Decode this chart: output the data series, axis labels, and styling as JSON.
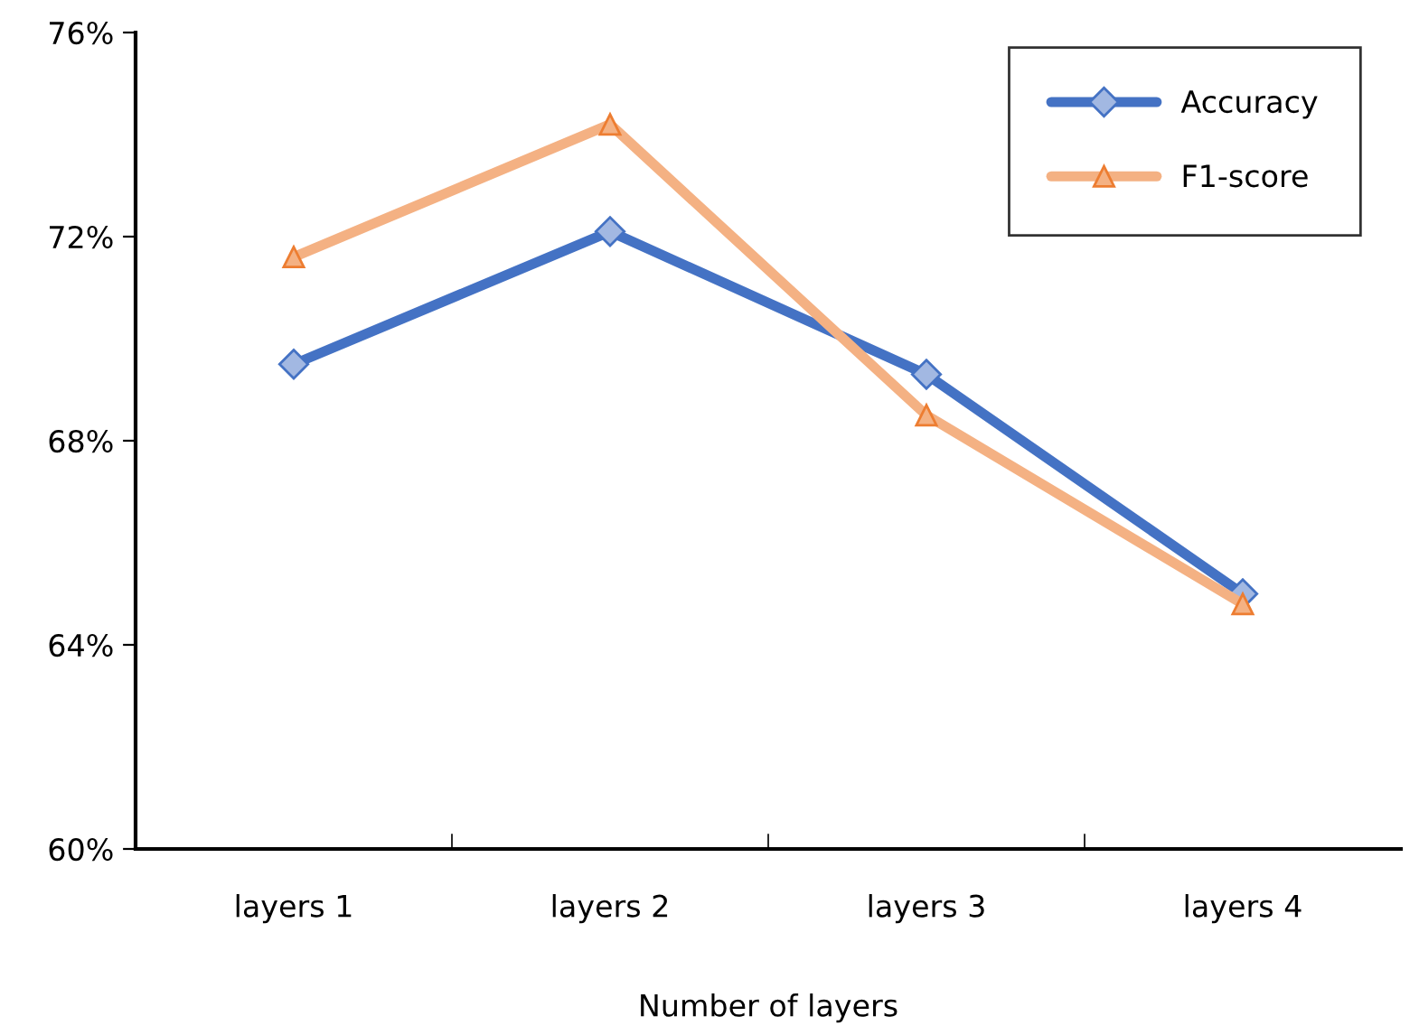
{
  "chart_data": {
    "type": "line",
    "xlabel": "Number of layers",
    "categories": [
      "layers 1",
      "layers 2",
      "layers 3",
      "layers 4"
    ],
    "series": [
      {
        "name": "Accuracy",
        "color": "#4472c4",
        "marker": "diamond",
        "values": [
          69.5,
          72.1,
          69.3,
          65.0
        ]
      },
      {
        "name": "F1-score",
        "color": "#f4b183",
        "marker": "triangle",
        "values": [
          71.6,
          74.2,
          68.5,
          64.8
        ]
      }
    ],
    "ylim": [
      60,
      76
    ],
    "yticks": [
      {
        "value": 60,
        "label": "60%"
      },
      {
        "value": 64,
        "label": "64%"
      },
      {
        "value": 68,
        "label": "68%"
      },
      {
        "value": 72,
        "label": "72%"
      },
      {
        "value": 76,
        "label": "76%"
      }
    ],
    "grid": false,
    "legend": "top right",
    "line_style": "solid"
  }
}
